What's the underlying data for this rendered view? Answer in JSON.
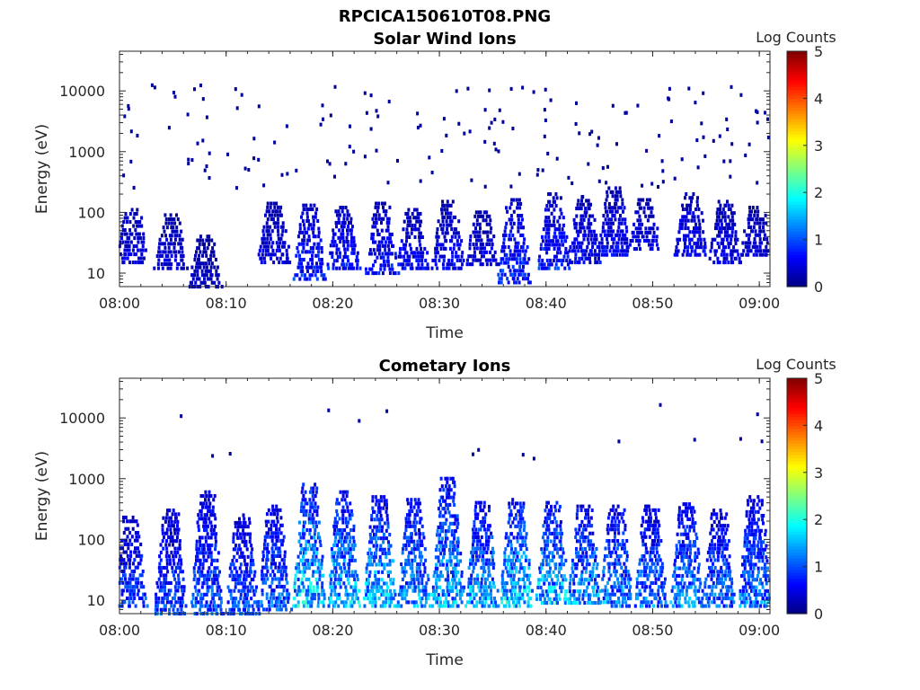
{
  "figure_title": "RPCICA150610T08.PNG",
  "colors": {
    "axis": "#262626",
    "colormap": "jet"
  },
  "chart_data": [
    {
      "type": "heatmap",
      "title": "Solar Wind Ions",
      "xlabel": "Time",
      "ylabel": "Energy (eV)",
      "x_ticks": [
        "08:00",
        "08:10",
        "08:20",
        "08:30",
        "08:40",
        "08:50",
        "09:00"
      ],
      "x_range": [
        "08:00",
        "09:01"
      ],
      "y_ticks": [
        "10",
        "100",
        "1000",
        "10000"
      ],
      "y_ticks_values": [
        10,
        100,
        1000,
        10000
      ],
      "y_range": [
        6,
        45000
      ],
      "y_scale": "log",
      "colorbar": {
        "label": "Log Counts",
        "ticks": [
          "0",
          "1",
          "2",
          "3",
          "4",
          "5"
        ],
        "range": [
          0,
          5
        ]
      },
      "seed": 11,
      "bursts": [
        {
          "t": 1.2,
          "emin": 15,
          "emax": 110,
          "level": 0.6
        },
        {
          "t": 4.8,
          "emin": 12,
          "emax": 90,
          "level": 0.5
        },
        {
          "t": 8.0,
          "emin": 6,
          "emax": 40,
          "level": 0.4
        },
        {
          "t": 14.5,
          "emin": 15,
          "emax": 140,
          "level": 0.6
        },
        {
          "t": 17.8,
          "emin": 8,
          "emax": 130,
          "level": 0.9
        },
        {
          "t": 21.0,
          "emin": 12,
          "emax": 120,
          "level": 0.8
        },
        {
          "t": 24.6,
          "emin": 10,
          "emax": 140,
          "level": 0.8
        },
        {
          "t": 27.5,
          "emin": 12,
          "emax": 110,
          "level": 0.7
        },
        {
          "t": 30.8,
          "emin": 12,
          "emax": 150,
          "level": 0.7
        },
        {
          "t": 34.0,
          "emin": 14,
          "emax": 100,
          "level": 0.6
        },
        {
          "t": 37.0,
          "emin": 7,
          "emax": 160,
          "level": 1.0
        },
        {
          "t": 40.8,
          "emin": 12,
          "emax": 200,
          "level": 0.9
        },
        {
          "t": 43.6,
          "emin": 15,
          "emax": 180,
          "level": 0.7
        },
        {
          "t": 46.4,
          "emin": 20,
          "emax": 250,
          "level": 0.7
        },
        {
          "t": 49.2,
          "emin": 25,
          "emax": 160,
          "level": 0.6
        },
        {
          "t": 53.6,
          "emin": 20,
          "emax": 200,
          "level": 0.7
        },
        {
          "t": 56.8,
          "emin": 15,
          "emax": 150,
          "level": 0.6
        },
        {
          "t": 59.7,
          "emin": 20,
          "emax": 120,
          "level": 0.5
        }
      ],
      "scatter": {
        "count": 170,
        "emin": 250,
        "emax": 13000,
        "level": 0.15
      }
    },
    {
      "type": "heatmap",
      "title": "Cometary Ions",
      "xlabel": "Time",
      "ylabel": "Energy (eV)",
      "x_ticks": [
        "08:00",
        "08:10",
        "08:20",
        "08:30",
        "08:40",
        "08:50",
        "09:00"
      ],
      "x_range": [
        "08:00",
        "09:01"
      ],
      "y_ticks": [
        "10",
        "100",
        "1000",
        "10000"
      ],
      "y_ticks_values": [
        10,
        100,
        1000,
        10000
      ],
      "y_range": [
        6,
        45000
      ],
      "y_scale": "log",
      "colorbar": {
        "label": "Log Counts",
        "ticks": [
          "0",
          "1",
          "2",
          "3",
          "4",
          "5"
        ],
        "range": [
          0,
          5
        ]
      },
      "seed": 29,
      "bursts": [
        {
          "t": 1.0,
          "emin": 8,
          "emax": 230,
          "level": 1.1
        },
        {
          "t": 4.8,
          "emin": 6,
          "emax": 300,
          "level": 1.1
        },
        {
          "t": 8.2,
          "emin": 6,
          "emax": 600,
          "level": 1.2
        },
        {
          "t": 11.5,
          "emin": 6,
          "emax": 250,
          "level": 1.2
        },
        {
          "t": 14.5,
          "emin": 7,
          "emax": 350,
          "level": 1.3
        },
        {
          "t": 17.8,
          "emin": 8,
          "emax": 800,
          "level": 2.0
        },
        {
          "t": 21.0,
          "emin": 8,
          "emax": 600,
          "level": 1.8
        },
        {
          "t": 24.4,
          "emin": 8,
          "emax": 500,
          "level": 1.8
        },
        {
          "t": 27.6,
          "emin": 8,
          "emax": 450,
          "level": 1.6
        },
        {
          "t": 30.8,
          "emin": 8,
          "emax": 1000,
          "level": 1.7
        },
        {
          "t": 34.0,
          "emin": 8,
          "emax": 400,
          "level": 1.7
        },
        {
          "t": 37.2,
          "emin": 8,
          "emax": 450,
          "level": 1.9
        },
        {
          "t": 40.6,
          "emin": 9,
          "emax": 400,
          "level": 1.8
        },
        {
          "t": 43.6,
          "emin": 9,
          "emax": 350,
          "level": 1.6
        },
        {
          "t": 46.6,
          "emin": 8,
          "emax": 350,
          "level": 1.5
        },
        {
          "t": 49.8,
          "emin": 8,
          "emax": 350,
          "level": 1.4
        },
        {
          "t": 53.2,
          "emin": 8,
          "emax": 380,
          "level": 1.5
        },
        {
          "t": 56.2,
          "emin": 8,
          "emax": 300,
          "level": 1.3
        },
        {
          "t": 59.6,
          "emin": 8,
          "emax": 500,
          "level": 1.4
        }
      ],
      "scatter": {
        "count": 16,
        "emin": 1500,
        "emax": 17000,
        "level": 0.15
      }
    }
  ]
}
